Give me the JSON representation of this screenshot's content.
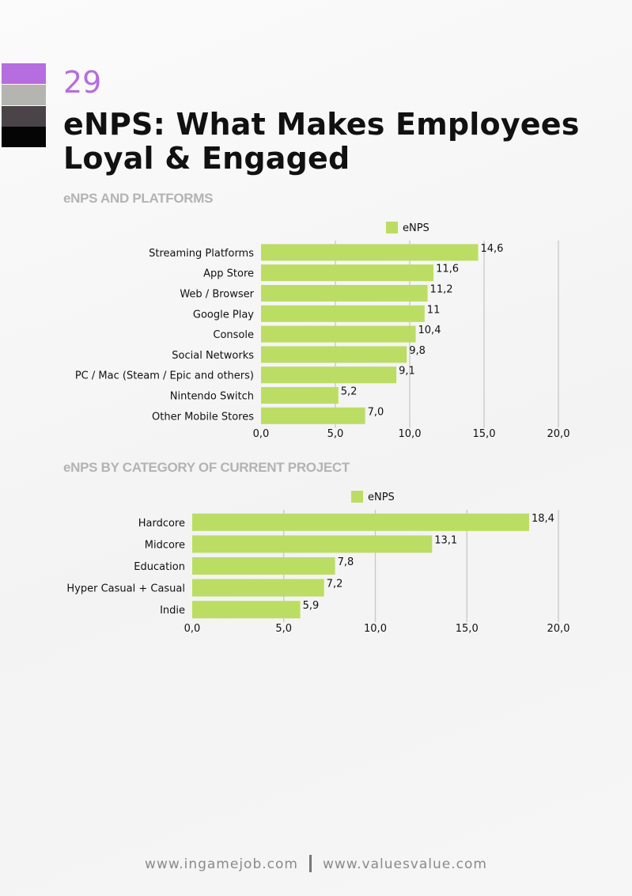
{
  "page": {
    "number": "29",
    "title": "eNPS: What Makes Employees Loyal & Engaged",
    "swatches": [
      "#b66de0",
      "#b4b4b0",
      "#4a4448",
      "#050505"
    ]
  },
  "footer": {
    "left": "www.ingamejob.com",
    "right": "www.valuesvalue.com"
  },
  "colors": {
    "bar": "#bcdd63",
    "grid": "#c8c8c8"
  },
  "chart_data": [
    {
      "type": "bar",
      "orientation": "horizontal",
      "title": "eNPS AND PLATFORMS",
      "categories": [
        "Streaming Platforms",
        "App Store",
        "Web / Browser",
        "Google Play",
        "Console",
        "Social Networks",
        "PC / Mac (Steam / Epic and others)",
        "Nintendo Switch",
        "Other Mobile Stores"
      ],
      "series": [
        {
          "name": "eNPS",
          "values": [
            14.6,
            11.6,
            11.2,
            11.0,
            10.4,
            9.8,
            9.1,
            5.2,
            7.0
          ],
          "labels": [
            "14,6",
            "11,6",
            "11,2",
            "11",
            "10,4",
            "9,8",
            "9,1",
            "5,2",
            "7,0"
          ]
        }
      ],
      "xlim": [
        0,
        20
      ],
      "ticks": [
        "0,0",
        "5,0",
        "10,0",
        "15,0",
        "20,0"
      ],
      "legend": "top",
      "grid": true
    },
    {
      "type": "bar",
      "orientation": "horizontal",
      "title": "eNPS BY CATEGORY OF CURRENT PROJECT",
      "categories": [
        "Hardcore",
        "Midcore",
        "Education",
        "Hyper Casual + Casual",
        "Indie"
      ],
      "series": [
        {
          "name": "eNPS",
          "values": [
            18.4,
            13.1,
            7.8,
            7.2,
            5.9
          ],
          "labels": [
            "18,4",
            "13,1",
            "7,8",
            "7,2",
            "5,9"
          ]
        }
      ],
      "xlim": [
        0,
        20
      ],
      "ticks": [
        "0,0",
        "5,0",
        "10,0",
        "15,0",
        "20,0"
      ],
      "legend": "top",
      "grid": true
    }
  ]
}
